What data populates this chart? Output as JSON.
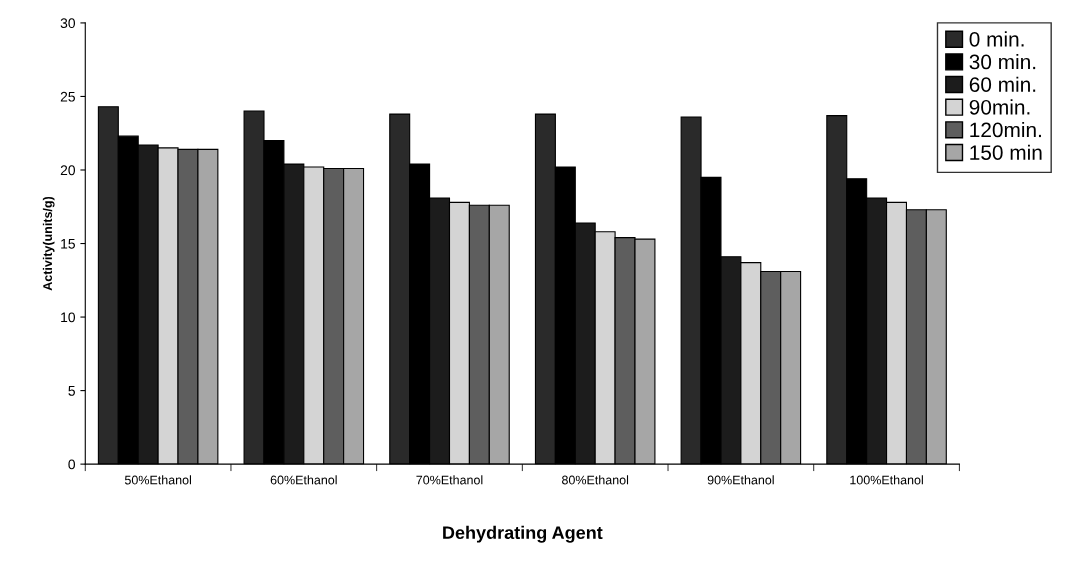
{
  "chart_data": {
    "type": "bar",
    "xlabel": "Dehydrating Agent",
    "ylabel": "Activity(units/g)",
    "categories": [
      "50%Ethanol",
      "60%Ethanol",
      "70%Ethanol",
      "80%Ethanol",
      "90%Ethanol",
      "100%Ethanol"
    ],
    "series": [
      {
        "name": "0 min.",
        "color": "#2a2a2a",
        "values": [
          24.3,
          24.0,
          23.8,
          23.8,
          23.6,
          23.7
        ]
      },
      {
        "name": "30 min.",
        "color": "#000000",
        "values": [
          22.3,
          22.0,
          20.4,
          20.2,
          19.5,
          19.4
        ]
      },
      {
        "name": "60 min.",
        "color": "#1c1c1c",
        "values": [
          21.7,
          20.4,
          18.1,
          16.4,
          14.1,
          18.1
        ]
      },
      {
        "name": "90min.",
        "color": "#d4d4d4",
        "values": [
          21.5,
          20.2,
          17.8,
          15.8,
          13.7,
          17.8
        ]
      },
      {
        "name": "120min.",
        "color": "#5e5e5e",
        "values": [
          21.4,
          20.1,
          17.6,
          15.4,
          13.1,
          17.3
        ]
      },
      {
        "name": "150 min",
        "color": "#a6a6a6",
        "values": [
          21.4,
          20.1,
          17.6,
          15.3,
          13.1,
          17.3
        ]
      }
    ],
    "ylim": [
      0,
      30
    ],
    "yticks": [
      0,
      5,
      10,
      15,
      20,
      25,
      30
    ],
    "grid": false,
    "legend": "top right"
  }
}
